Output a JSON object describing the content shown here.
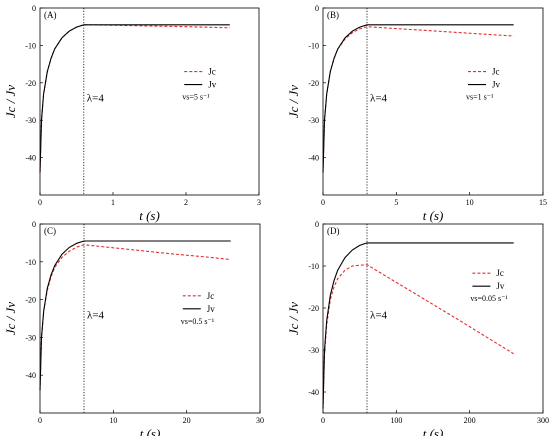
{
  "chart_data": [
    {
      "type": "line",
      "panel_label": "(A)",
      "xlabel": "t (s)",
      "ylabel": "Jc / Jv",
      "xlim": [
        0,
        3
      ],
      "ylim": [
        -50,
        0
      ],
      "xticks": [
        0,
        1,
        2,
        3
      ],
      "yticks": [
        0,
        -10,
        -20,
        -30,
        -40
      ],
      "vline_x": 0.6,
      "annotation": "λ=4",
      "legend": [
        "Jc",
        "Jv"
      ],
      "velocity_label": "vs=5 s⁻¹",
      "series": [
        {
          "name": "Jc",
          "style": "dashed",
          "color": "#e03030",
          "x": [
            0,
            0.02,
            0.05,
            0.1,
            0.15,
            0.2,
            0.3,
            0.4,
            0.5,
            0.6,
            1.0,
            1.5,
            2.0,
            2.6
          ],
          "y": [
            -44,
            -30,
            -23,
            -17,
            -13.5,
            -11,
            -8,
            -6.2,
            -5.1,
            -4.5,
            -4.6,
            -4.8,
            -5.0,
            -5.3
          ]
        },
        {
          "name": "Jv",
          "style": "solid",
          "color": "#000000",
          "x": [
            0,
            0.02,
            0.05,
            0.1,
            0.15,
            0.2,
            0.3,
            0.4,
            0.5,
            0.6,
            1.0,
            1.5,
            2.0,
            2.6
          ],
          "y": [
            -44,
            -30,
            -23,
            -17,
            -13.5,
            -11,
            -8,
            -6.2,
            -5.1,
            -4.5,
            -4.5,
            -4.5,
            -4.5,
            -4.5
          ]
        }
      ]
    },
    {
      "type": "line",
      "panel_label": "(B)",
      "xlabel": "t (s)",
      "ylabel": "Jc / Jv",
      "xlim": [
        0,
        15
      ],
      "ylim": [
        -50,
        0
      ],
      "xticks": [
        0,
        5,
        10,
        15
      ],
      "yticks": [
        0,
        -10,
        -20,
        -30,
        -40
      ],
      "vline_x": 3,
      "annotation": "λ=4",
      "legend": [
        "Jc",
        "Jv"
      ],
      "velocity_label": "vs=1 s⁻¹",
      "series": [
        {
          "name": "Jc",
          "style": "dashed",
          "color": "#e03030",
          "x": [
            0,
            0.1,
            0.25,
            0.5,
            0.75,
            1.0,
            1.5,
            2.0,
            2.5,
            3.0,
            5,
            7,
            9,
            11,
            13
          ],
          "y": [
            -44,
            -30,
            -23,
            -17,
            -13.5,
            -11,
            -8.3,
            -6.6,
            -5.6,
            -5.0,
            -5.5,
            -6.0,
            -6.5,
            -7.0,
            -7.5
          ]
        },
        {
          "name": "Jv",
          "style": "solid",
          "color": "#000000",
          "x": [
            0,
            0.1,
            0.25,
            0.5,
            0.75,
            1.0,
            1.5,
            2.0,
            2.5,
            3.0,
            5,
            7,
            9,
            11,
            13
          ],
          "y": [
            -44,
            -30,
            -23,
            -17,
            -13.5,
            -11,
            -8,
            -6.2,
            -5.1,
            -4.5,
            -4.5,
            -4.5,
            -4.5,
            -4.5,
            -4.5
          ]
        }
      ]
    },
    {
      "type": "line",
      "panel_label": "(C)",
      "xlabel": "t (s)",
      "ylabel": "Jc / Jv",
      "xlim": [
        0,
        30
      ],
      "ylim": [
        -50,
        0
      ],
      "xticks": [
        0,
        10,
        20,
        30
      ],
      "yticks": [
        0,
        -10,
        -20,
        -30,
        -40
      ],
      "vline_x": 6,
      "annotation": "λ=4",
      "legend": [
        "Jc",
        "Jv"
      ],
      "velocity_label": "vs=0.5 s⁻¹",
      "series": [
        {
          "name": "Jc",
          "style": "dashed",
          "color": "#e03030",
          "x": [
            0,
            0.2,
            0.5,
            1,
            1.5,
            2,
            3,
            4,
            5,
            6,
            10,
            14,
            18,
            22,
            26
          ],
          "y": [
            -44,
            -30,
            -23,
            -17.5,
            -14,
            -11.5,
            -8.8,
            -7.2,
            -6.1,
            -5.5,
            -6.3,
            -7.1,
            -7.9,
            -8.6,
            -9.4
          ]
        },
        {
          "name": "Jv",
          "style": "solid",
          "color": "#000000",
          "x": [
            0,
            0.2,
            0.5,
            1,
            1.5,
            2,
            3,
            4,
            5,
            6,
            10,
            14,
            18,
            22,
            26
          ],
          "y": [
            -44,
            -30,
            -23,
            -17,
            -13.5,
            -11,
            -8,
            -6.2,
            -5.1,
            -4.5,
            -4.5,
            -4.5,
            -4.5,
            -4.5,
            -4.5
          ]
        }
      ]
    },
    {
      "type": "line",
      "panel_label": "(D)",
      "xlabel": "t (s)",
      "ylabel": "Jc / Jv",
      "xlim": [
        0,
        300
      ],
      "ylim": [
        -45,
        0
      ],
      "xticks": [
        0,
        100,
        200,
        300
      ],
      "yticks": [
        0,
        -10,
        -20,
        -30,
        -40
      ],
      "vline_x": 60,
      "annotation": "λ=4",
      "legend": [
        "Jc",
        "Jv"
      ],
      "velocity_label": "vs=0.05 s⁻¹",
      "series": [
        {
          "name": "Jc",
          "style": "dashed",
          "color": "#e03030",
          "x": [
            0,
            2,
            5,
            10,
            15,
            20,
            30,
            40,
            50,
            60,
            100,
            140,
            180,
            220,
            260
          ],
          "y": [
            -44,
            -31,
            -24,
            -18,
            -15,
            -13,
            -11,
            -10,
            -9.8,
            -9.7,
            -13.9,
            -18.1,
            -22.3,
            -26.6,
            -30.9
          ]
        },
        {
          "name": "Jv",
          "style": "solid",
          "color": "#000000",
          "x": [
            0,
            2,
            5,
            10,
            15,
            20,
            30,
            40,
            50,
            60,
            100,
            140,
            180,
            220,
            260
          ],
          "y": [
            -44,
            -30,
            -23,
            -17,
            -13.5,
            -11,
            -8,
            -6.2,
            -5.1,
            -4.5,
            -4.5,
            -4.5,
            -4.5,
            -4.5,
            -4.5
          ]
        }
      ]
    }
  ]
}
